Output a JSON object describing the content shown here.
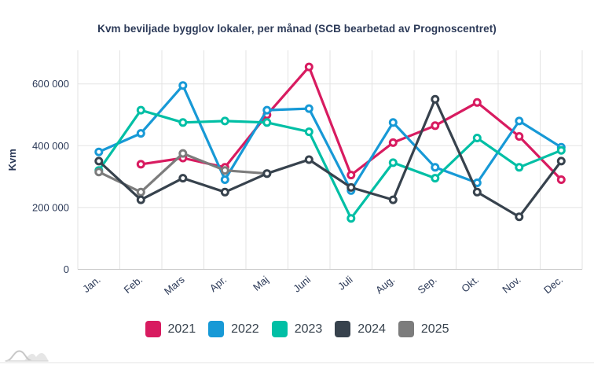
{
  "title": "Kvm beviljade bygglov lokaler, per månad (SCB bearbetad av Prognoscentret)",
  "colors": {
    "text": "#2c3a58",
    "grid": "#e3e3e3",
    "axis_baseline": "#c9c9c9",
    "background": "#ffffff"
  },
  "chart_data": {
    "type": "line",
    "title": "Kvm beviljade bygglov lokaler, per månad (SCB bearbetad av Prognoscentret)",
    "ylabel": "Kvm",
    "xlabel": "",
    "categories": [
      "Jan.",
      "Feb.",
      "Mars",
      "Apr.",
      "Maj",
      "Juni",
      "Juli",
      "Aug.",
      "Sep.",
      "Okt.",
      "Nov.",
      "Dec."
    ],
    "ylim": [
      0,
      700000
    ],
    "yticks": [
      0,
      200000,
      400000,
      600000
    ],
    "ytick_labels": [
      "0",
      "200 000",
      "400 000",
      "600 000"
    ],
    "grid": true,
    "legend_position": "bottom",
    "marker": "open-circle",
    "series": [
      {
        "name": "2021",
        "color": "#d81b60",
        "values": [
          null,
          340000,
          360000,
          330000,
          500000,
          655000,
          305000,
          410000,
          465000,
          540000,
          430000,
          290000
        ]
      },
      {
        "name": "2022",
        "color": "#1799d6",
        "values": [
          380000,
          440000,
          595000,
          290000,
          515000,
          520000,
          255000,
          475000,
          330000,
          280000,
          480000,
          395000
        ]
      },
      {
        "name": "2023",
        "color": "#00bfa5",
        "values": [
          320000,
          515000,
          475000,
          480000,
          475000,
          445000,
          165000,
          345000,
          295000,
          425000,
          330000,
          385000
        ]
      },
      {
        "name": "2024",
        "color": "#37424d",
        "values": [
          350000,
          225000,
          295000,
          250000,
          310000,
          355000,
          265000,
          225000,
          550000,
          250000,
          170000,
          350000
        ]
      },
      {
        "name": "2025",
        "color": "#7c7c7c",
        "values": [
          315000,
          250000,
          375000,
          320000,
          310000,
          null,
          null,
          null,
          null,
          null,
          null,
          null
        ]
      }
    ],
    "draw_order": [
      "2021",
      "2022",
      "2023",
      "2025",
      "2024"
    ]
  },
  "logo": {
    "name": "prognoscentret-mountains-logo"
  }
}
